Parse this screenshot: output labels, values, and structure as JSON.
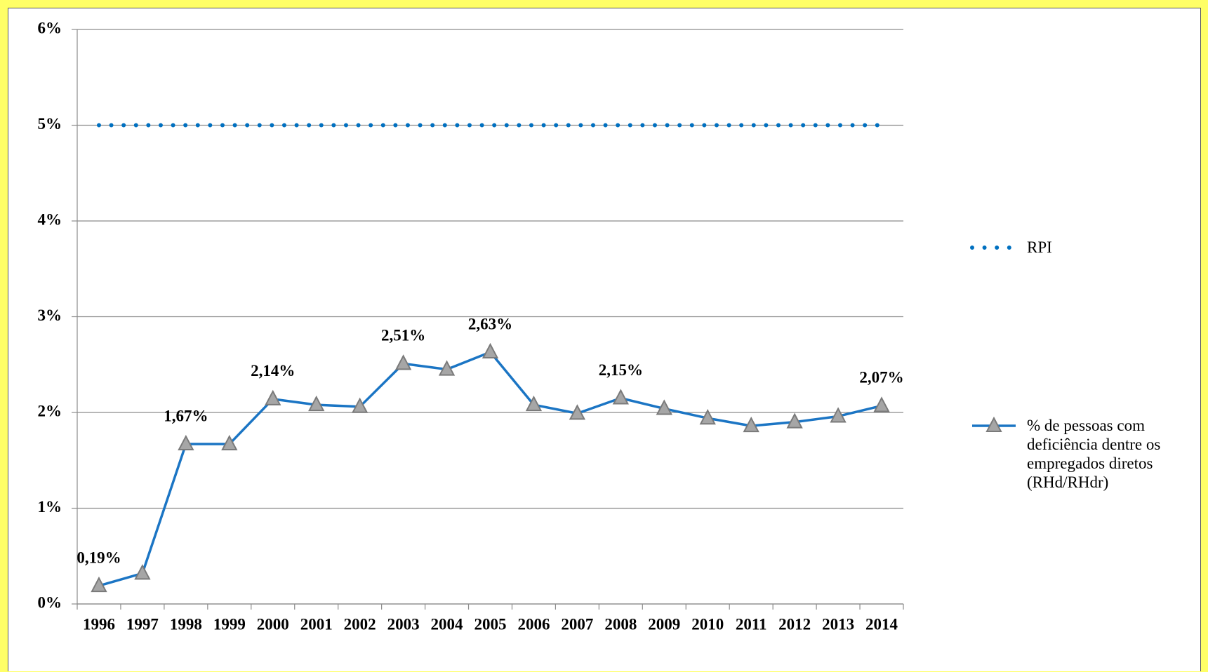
{
  "chart_data": {
    "type": "line",
    "categories": [
      "1996",
      "1997",
      "1998",
      "1999",
      "2000",
      "2001",
      "2002",
      "2003",
      "2004",
      "2005",
      "2006",
      "2007",
      "2008",
      "2009",
      "2010",
      "2011",
      "2012",
      "2013",
      "2014"
    ],
    "series": [
      {
        "name": "RPI",
        "color": "#0070c0",
        "style": "dotted",
        "marker": "none",
        "values": [
          5,
          5,
          5,
          5,
          5,
          5,
          5,
          5,
          5,
          5,
          5,
          5,
          5,
          5,
          5,
          5,
          5,
          5,
          5
        ]
      },
      {
        "name": "% de pessoas com deficiência dentre os empregados diretos (RHd/RHdr)",
        "color": "#1b75c4",
        "style": "solid",
        "marker": "triangle",
        "values": [
          0.19,
          0.32,
          1.67,
          1.67,
          2.14,
          2.08,
          2.06,
          2.51,
          2.45,
          2.63,
          2.08,
          1.99,
          2.15,
          2.04,
          1.94,
          1.86,
          1.9,
          1.96,
          2.07
        ],
        "value_labels": [
          "0,19%",
          null,
          "1,67%",
          null,
          "2,14%",
          null,
          null,
          "2,51%",
          null,
          "2,63%",
          null,
          null,
          "2,15%",
          null,
          null,
          null,
          null,
          null,
          "2,07%"
        ]
      }
    ],
    "ylim": [
      0,
      6
    ],
    "yticks": [
      {
        "value": 0,
        "label": "0%"
      },
      {
        "value": 1,
        "label": "1%"
      },
      {
        "value": 2,
        "label": "2%"
      },
      {
        "value": 3,
        "label": "3%"
      },
      {
        "value": 4,
        "label": "4%"
      },
      {
        "value": 5,
        "label": "5%"
      },
      {
        "value": 6,
        "label": "6%"
      }
    ],
    "grid": true,
    "legend": "right"
  }
}
